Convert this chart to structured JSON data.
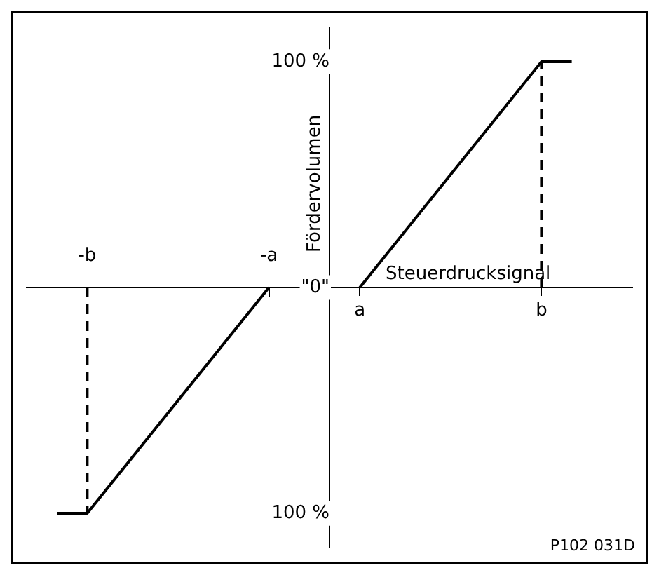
{
  "chart_data": {
    "type": "line",
    "xlabel": "Steuerdrucksignal",
    "ylabel": "Fördervolumen",
    "annotations": [
      "P102 031D"
    ],
    "categories": [
      null,
      null,
      "-b",
      null,
      null,
      null,
      null,
      null,
      "-a",
      null,
      null,
      "a",
      null,
      null,
      null,
      null,
      null,
      "b",
      null,
      null,
      null
    ],
    "series": [
      {
        "color": "#000000",
        "values": [
          null,
          -100,
          -100,
          null,
          null,
          null,
          null,
          null,
          0,
          null,
          null,
          null,
          null,
          null,
          null,
          null,
          null,
          null,
          null,
          null,
          null
        ]
      },
      {
        "color": "#000000",
        "values": [
          null,
          null,
          null,
          null,
          null,
          null,
          null,
          null,
          null,
          null,
          null,
          0,
          null,
          null,
          null,
          null,
          null,
          100,
          100,
          null,
          null
        ]
      },
      {
        "color": "#000000",
        "x": [
          "b",
          "b"
        ],
        "values": [
          0,
          100
        ],
        "line_style": "dashed"
      },
      {
        "color": "#000000",
        "x": [
          "-b",
          "-b"
        ],
        "values": [
          0,
          -100
        ],
        "line_style": "dashed"
      }
    ],
    "ylim": [
      -115,
      115
    ],
    "yticks": [
      {
        "value": -100,
        "label": "100 %"
      },
      {
        "value": 0,
        "label": "\"0\""
      },
      {
        "value": 100,
        "label": "100 %"
      }
    ],
    "grid": false,
    "legend": false,
    "marker": "none",
    "line_style": "solid"
  }
}
